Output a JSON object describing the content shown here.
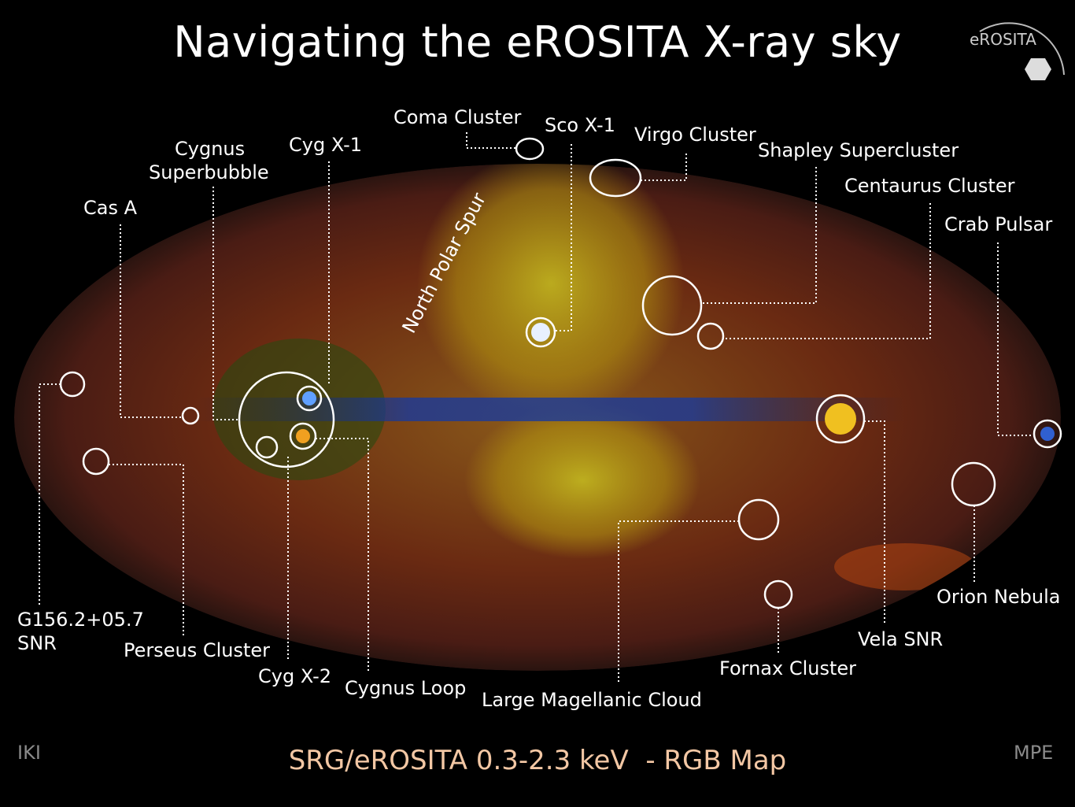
{
  "title": "Navigating the eROSITA X-ray sky",
  "caption": "SRG/eROSITA 0.3-2.3 keV  - RGB Map",
  "corner_left": "IKI",
  "corner_right": "MPE",
  "logo": {
    "text": "eROSITA",
    "icon": "hexagon-mirror-logo"
  },
  "annotations": {
    "coma": "Coma Cluster",
    "sco": "Sco X-1",
    "virgo": "Virgo Cluster",
    "shapley": "Shapley Supercluster",
    "centaurus": "Centaurus Cluster",
    "crab": "Crab Pulsar",
    "orion": "Orion Nebula",
    "vela": "Vela SNR",
    "fornax": "Fornax Cluster",
    "lmc": "Large Magellanic Cloud",
    "cygloop": "Cygnus Loop",
    "cygx2": "Cyg X-2",
    "perseus": "Perseus Cluster",
    "g156_line1": "G156.2+05.7",
    "g156_line2": "SNR",
    "casa": "Cas A",
    "cygsb_line1": "Cygnus",
    "cygsb_line2": "Superbubble",
    "cygx1": "Cyg X-1",
    "nps": "North Polar Spur"
  },
  "colors": {
    "background": "#000000",
    "caption": "#f3c7a4",
    "annotation": "#ffffff"
  }
}
